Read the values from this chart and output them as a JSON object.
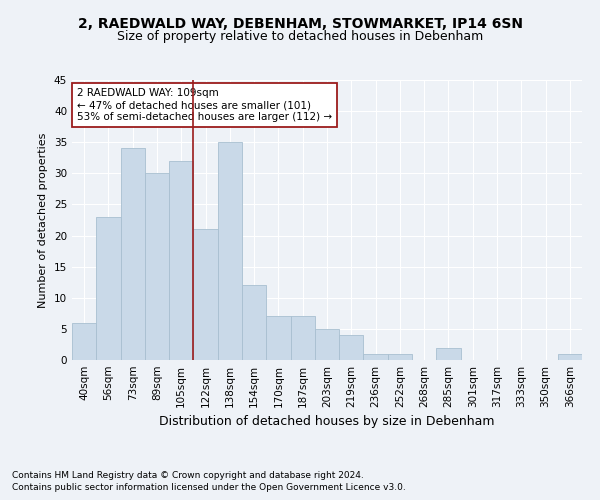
{
  "title1": "2, RAEDWALD WAY, DEBENHAM, STOWMARKET, IP14 6SN",
  "title2": "Size of property relative to detached houses in Debenham",
  "xlabel": "Distribution of detached houses by size in Debenham",
  "ylabel": "Number of detached properties",
  "categories": [
    "40sqm",
    "56sqm",
    "73sqm",
    "89sqm",
    "105sqm",
    "122sqm",
    "138sqm",
    "154sqm",
    "170sqm",
    "187sqm",
    "203sqm",
    "219sqm",
    "236sqm",
    "252sqm",
    "268sqm",
    "285sqm",
    "301sqm",
    "317sqm",
    "333sqm",
    "350sqm",
    "366sqm"
  ],
  "values": [
    6,
    23,
    34,
    30,
    32,
    21,
    35,
    12,
    7,
    7,
    5,
    4,
    1,
    1,
    0,
    2,
    0,
    0,
    0,
    0,
    1
  ],
  "bar_color": "#c9d9e8",
  "bar_edge_color": "#a8bfd0",
  "vline_x_index": 4.5,
  "vline_color": "#9b1c1c",
  "annotation_text": "2 RAEDWALD WAY: 109sqm\n← 47% of detached houses are smaller (101)\n53% of semi-detached houses are larger (112) →",
  "annotation_box_color": "white",
  "annotation_box_edge": "#9b1c1c",
  "ylim": [
    0,
    45
  ],
  "yticks": [
    0,
    5,
    10,
    15,
    20,
    25,
    30,
    35,
    40,
    45
  ],
  "footnote1": "Contains HM Land Registry data © Crown copyright and database right 2024.",
  "footnote2": "Contains public sector information licensed under the Open Government Licence v3.0.",
  "bg_color": "#eef2f7",
  "grid_color": "white",
  "title1_fontsize": 10,
  "title2_fontsize": 9,
  "xlabel_fontsize": 9,
  "ylabel_fontsize": 8,
  "tick_fontsize": 7.5,
  "annot_fontsize": 7.5,
  "footnote_fontsize": 6.5
}
